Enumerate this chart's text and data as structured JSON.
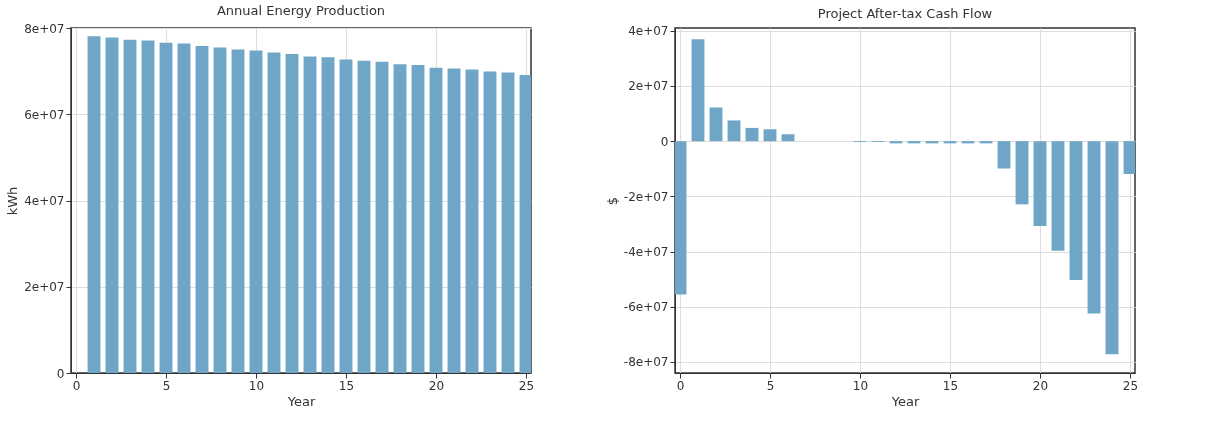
{
  "chart_data": [
    {
      "type": "bar",
      "title": "Annual Energy Production",
      "xlabel": "Year",
      "ylabel": "kWh",
      "x": [
        1,
        2,
        3,
        4,
        5,
        6,
        7,
        8,
        9,
        10,
        11,
        12,
        13,
        14,
        15,
        16,
        17,
        18,
        19,
        20,
        21,
        22,
        23,
        24,
        25
      ],
      "values": [
        78100000,
        77800000,
        77300000,
        77100000,
        76600000,
        76400000,
        75800000,
        75500000,
        75000000,
        74800000,
        74300000,
        74000000,
        73400000,
        73200000,
        72700000,
        72400000,
        72200000,
        71600000,
        71400000,
        70800000,
        70600000,
        70400000,
        69900000,
        69700000,
        69100000
      ],
      "color": "#6fa5c7",
      "xlim": [
        0,
        25
      ],
      "xticks": [
        0,
        5,
        10,
        15,
        20,
        25
      ],
      "ylim": [
        0,
        80000000
      ],
      "yticks": [
        0,
        {
          "value": 20000000,
          "label": "2e+07"
        },
        {
          "value": 40000000,
          "label": "4e+07"
        },
        {
          "value": 60000000,
          "label": "6e+07"
        },
        {
          "value": 80000000,
          "label": "8e+07"
        }
      ],
      "grid": true
    },
    {
      "type": "bar",
      "title": "Project After-tax Cash Flow",
      "xlabel": "Year",
      "ylabel": "$",
      "x": [
        0,
        1,
        2,
        3,
        4,
        5,
        6,
        7,
        8,
        9,
        10,
        11,
        12,
        13,
        14,
        15,
        16,
        17,
        18,
        19,
        20,
        21,
        22,
        23,
        24,
        25
      ],
      "values": [
        -55600000,
        36900000,
        12200000,
        7500000,
        4800000,
        4300000,
        2500000,
        0,
        0,
        0,
        -300000,
        -300000,
        -800000,
        -800000,
        -800000,
        -800000,
        -800000,
        -800000,
        -9900000,
        -22900000,
        -30700000,
        -39700000,
        -50300000,
        -62400000,
        -77200000,
        -11900000
      ],
      "color": "#6fa5c7",
      "xlim": [
        0,
        25
      ],
      "xticks": [
        0,
        5,
        10,
        15,
        20,
        25
      ],
      "ylim": [
        -84000000,
        41000000
      ],
      "yticks": [
        {
          "value": -80000000,
          "label": "-8e+07"
        },
        {
          "value": -60000000,
          "label": "-6e+07"
        },
        {
          "value": -40000000,
          "label": "-4e+07"
        },
        {
          "value": -20000000,
          "label": "-2e+07"
        },
        0,
        {
          "value": 20000000,
          "label": "2e+07"
        },
        {
          "value": 40000000,
          "label": "4e+07"
        }
      ],
      "grid": true
    }
  ]
}
